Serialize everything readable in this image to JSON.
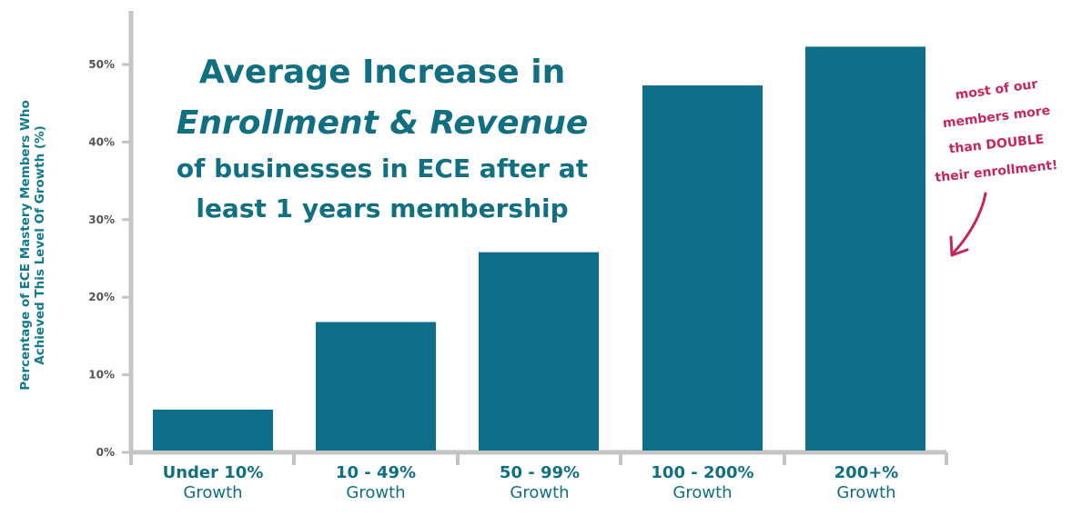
{
  "chart_data": {
    "type": "bar",
    "title_lines": [
      "Average Increase in",
      "Enrollment & Revenue",
      "of businesses in ECE after at",
      "least 1 years membership"
    ],
    "ylabel": "Percentage of ECE Mastery Members Who Achieved This Level Of Growth (%)",
    "ylim": [
      0,
      55
    ],
    "yticks": [
      "0%",
      "10%",
      "20%",
      "30%",
      "40%",
      "50%"
    ],
    "categories": [
      {
        "line1": "Under 10%",
        "line2": "Growth"
      },
      {
        "line1": "10 - 49%",
        "line2": "Growth"
      },
      {
        "line1": "50 - 99%",
        "line2": "Growth"
      },
      {
        "line1": "100 - 200%",
        "line2": "Growth"
      },
      {
        "line1": "200+%",
        "line2": "Growth"
      }
    ],
    "values": [
      5.5,
      16.8,
      25.8,
      47.3,
      52.3
    ],
    "bar_color": "#0f6e89",
    "annotation_lines": [
      "most of our",
      "members more",
      "than DOUBLE",
      "their enrollment!"
    ],
    "annotation_color": "#c6265a",
    "grid": false
  }
}
